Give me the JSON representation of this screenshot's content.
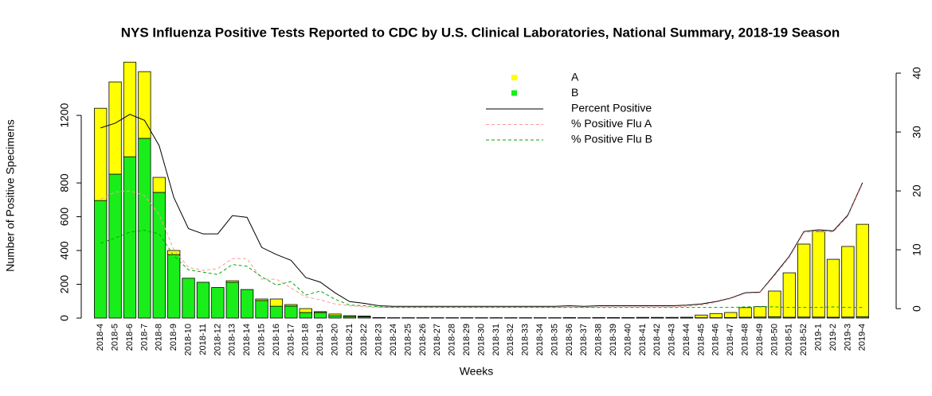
{
  "chart_data": {
    "type": "bar",
    "stacked": true,
    "title": "NYS Influenza Positive Tests Reported to CDC by U.S. Clinical Laboratories, National Summary, 2018-19 Season",
    "x_label": "Weeks",
    "y_label": "Number of Positive Specimens",
    "categories": [
      "2018-4",
      "2018-5",
      "2018-6",
      "2018-7",
      "2018-8",
      "2018-9",
      "2018-10",
      "2018-11",
      "2018-12",
      "2018-13",
      "2018-14",
      "2018-15",
      "2018-16",
      "2018-17",
      "2018-18",
      "2018-19",
      "2018-20",
      "2018-21",
      "2018-22",
      "2018-23",
      "2018-24",
      "2018-25",
      "2018-26",
      "2018-27",
      "2018-28",
      "2018-29",
      "2018-30",
      "2018-31",
      "2018-32",
      "2018-33",
      "2018-34",
      "2018-35",
      "2018-36",
      "2018-37",
      "2018-38",
      "2018-39",
      "2018-40",
      "2018-41",
      "2018-42",
      "2018-43",
      "2018-44",
      "2018-45",
      "2018-46",
      "2018-47",
      "2018-48",
      "2018-49",
      "2018-50",
      "2018-51",
      "2018-52",
      "2019-1",
      "2019-2",
      "2019-3",
      "2019-4"
    ],
    "ylim": [
      0,
      1450
    ],
    "yticks": [
      0,
      200,
      400,
      600,
      800,
      1200
    ],
    "y2lim": [
      -1.6,
      40
    ],
    "y2ticks": [
      0,
      10,
      20,
      30,
      40
    ],
    "series": [
      {
        "name": "A",
        "type": "bar",
        "color": "#ffff00",
        "values": [
          546,
          546,
          560,
          395,
          89,
          24,
          0,
          0,
          0,
          9,
          0,
          9,
          43,
          9,
          23,
          5,
          10,
          5,
          4,
          1,
          1,
          1,
          1,
          1,
          1,
          1,
          1,
          1,
          1,
          1,
          1,
          1,
          2,
          1,
          2,
          2,
          2,
          3,
          3,
          3,
          4,
          16,
          25,
          30,
          57,
          62,
          152,
          263,
          432,
          507,
          343,
          418,
          547
        ]
      },
      {
        "name": "B",
        "type": "bar",
        "color": "#1aee1a",
        "values": [
          696,
          852,
          955,
          1064,
          744,
          376,
          236,
          212,
          181,
          212,
          169,
          104,
          70,
          71,
          33,
          33,
          14,
          9,
          8,
          2,
          1,
          1,
          1,
          1,
          1,
          1,
          1,
          1,
          1,
          1,
          1,
          1,
          1,
          1,
          1,
          1,
          1,
          1,
          1,
          1,
          1,
          2,
          2,
          3,
          5,
          6,
          8,
          5,
          6,
          6,
          5,
          6,
          8
        ]
      },
      {
        "name": "Percent Positive",
        "type": "line",
        "axis": "y2",
        "color": "#000000",
        "dashed": false,
        "values": [
          30.7,
          31.5,
          33.0,
          32.0,
          27.7,
          18.9,
          13.6,
          12.7,
          12.7,
          15.8,
          15.5,
          10.4,
          9.2,
          8.2,
          5.3,
          4.5,
          2.7,
          1.2,
          0.9,
          0.5,
          0.4,
          0.4,
          0.4,
          0.4,
          0.4,
          0.4,
          0.4,
          0.4,
          0.4,
          0.4,
          0.4,
          0.4,
          0.5,
          0.4,
          0.5,
          0.5,
          0.5,
          0.5,
          0.5,
          0.5,
          0.6,
          0.8,
          1.2,
          1.8,
          2.7,
          2.8,
          5.8,
          8.9,
          13.1,
          13.4,
          13.2,
          15.9,
          21.4
        ]
      },
      {
        "name": "% Positive Flu A",
        "type": "line",
        "axis": "y2",
        "color": "#ff9999",
        "dashed": true,
        "values": [
          18.6,
          19.8,
          20.0,
          19.2,
          16.0,
          10.0,
          7.0,
          6.5,
          6.8,
          8.5,
          8.5,
          5.0,
          5.0,
          3.5,
          2.0,
          1.5,
          0.8,
          0.5,
          0.3,
          0.2,
          0.2,
          0.2,
          0.2,
          0.2,
          0.2,
          0.2,
          0.2,
          0.2,
          0.2,
          0.2,
          0.2,
          0.2,
          0.3,
          0.2,
          0.3,
          0.3,
          0.3,
          0.3,
          0.3,
          0.3,
          0.4,
          0.6,
          1.1,
          1.7,
          2.6,
          2.7,
          5.6,
          8.7,
          12.9,
          13.2,
          13.0,
          15.7,
          21.2
        ]
      },
      {
        "name": "% Positive Flu B",
        "type": "line",
        "axis": "y2",
        "color": "#00aa00",
        "dashed": true,
        "values": [
          11.1,
          12.0,
          13.0,
          13.3,
          12.7,
          9.0,
          6.6,
          6.2,
          5.8,
          7.5,
          7.2,
          5.4,
          4.0,
          4.6,
          2.3,
          3.0,
          1.6,
          0.6,
          0.5,
          0.3,
          0.2,
          0.2,
          0.2,
          0.2,
          0.2,
          0.2,
          0.2,
          0.2,
          0.2,
          0.2,
          0.2,
          0.2,
          0.2,
          0.2,
          0.2,
          0.2,
          0.2,
          0.2,
          0.2,
          0.2,
          0.2,
          0.2,
          0.2,
          0.2,
          0.3,
          0.3,
          0.3,
          0.2,
          0.2,
          0.2,
          0.3,
          0.2,
          0.2
        ]
      }
    ]
  }
}
